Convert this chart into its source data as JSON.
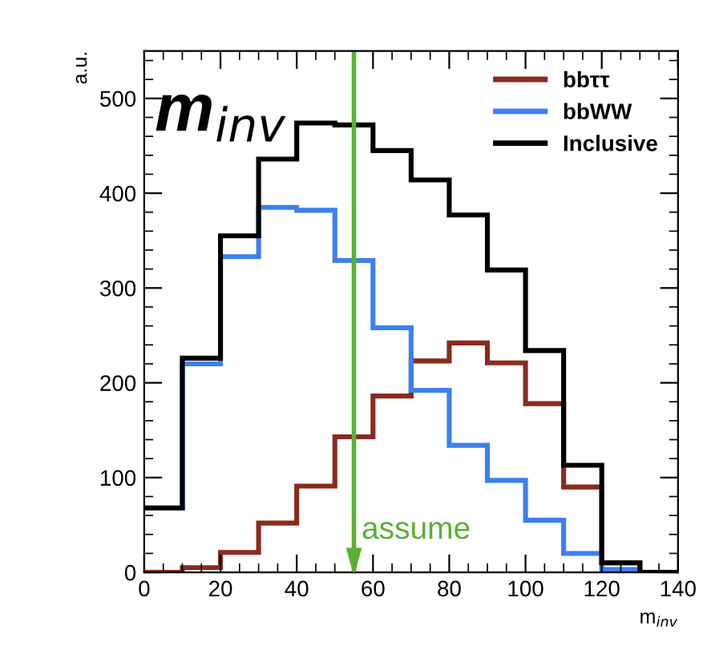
{
  "chart_data": {
    "type": "histogram",
    "title": "m$_{inv}$",
    "xlabel": "m$_{inv}$",
    "ylabel": "a.u.",
    "bins": [
      0,
      10,
      20,
      30,
      40,
      50,
      60,
      70,
      80,
      90,
      100,
      110,
      120,
      130,
      140
    ],
    "series": [
      {
        "name": "bbττ",
        "color": "#8b2a1f",
        "values": [
          0,
          5,
          21,
          52,
          91,
          143,
          186,
          223,
          242,
          221,
          178,
          90,
          10,
          0
        ]
      },
      {
        "name": "bbWW",
        "color": "#3d7ff0",
        "values": [
          68,
          220,
          333,
          385,
          382,
          329,
          258,
          192,
          134,
          97,
          55,
          20,
          3,
          0
        ]
      },
      {
        "name": "Inclusive",
        "color": "#000000",
        "values": [
          68,
          226,
          355,
          436,
          474,
          472,
          445,
          414,
          377,
          319,
          234,
          113,
          10,
          0
        ]
      }
    ],
    "xlim": [
      0,
      140
    ],
    "ylim": [
      0,
      550
    ],
    "xticks": [
      0,
      20,
      40,
      60,
      80,
      100,
      120,
      140
    ],
    "yticks": [
      0,
      100,
      200,
      300,
      400,
      500
    ],
    "ref_lines": [
      {
        "axis": "x",
        "value": 55,
        "label": "assume",
        "color": "#5ab034"
      }
    ],
    "legend": "top right",
    "grid": false
  }
}
